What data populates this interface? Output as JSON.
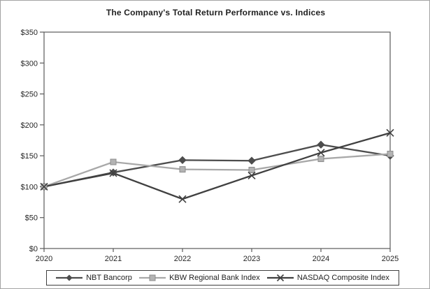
{
  "figure": {
    "background": "#ffffff",
    "border_color": "#a3a3a3",
    "plot_border_color": "#5a5a5a",
    "tick_color": "#5a5a5a",
    "label_color": "#262626"
  },
  "chart_data": {
    "type": "line",
    "title": "The Company's Total Return Performance vs. Indices",
    "categories": [
      "2020",
      "2021",
      "2022",
      "2023",
      "2024",
      "2025"
    ],
    "series": [
      {
        "name": "NBT Bancorp",
        "marker": "diamond",
        "color": "#4d4d4d",
        "marker_fill": "#4d4d4d",
        "values": [
          100,
          123,
          143,
          142,
          168,
          150
        ]
      },
      {
        "name": "KBW Regional Bank Index",
        "marker": "square",
        "color": "#a8a8a8",
        "marker_fill": "#b3b3b3",
        "values": [
          100,
          140,
          128,
          127,
          145,
          153
        ]
      },
      {
        "name": "NASDAQ Composite Index",
        "marker": "x",
        "color": "#404040",
        "marker_fill": "#404040",
        "values": [
          100,
          122,
          80,
          118,
          155,
          187
        ]
      }
    ],
    "xlabel": "",
    "ylabel": "",
    "ylim": [
      0,
      350
    ],
    "y_tick_step": 50,
    "y_tick_labels": [
      "$0",
      "$50",
      "$100",
      "$150",
      "$200",
      "$250",
      "$300",
      "$350"
    ],
    "grid": false,
    "legend_position": "bottom"
  }
}
